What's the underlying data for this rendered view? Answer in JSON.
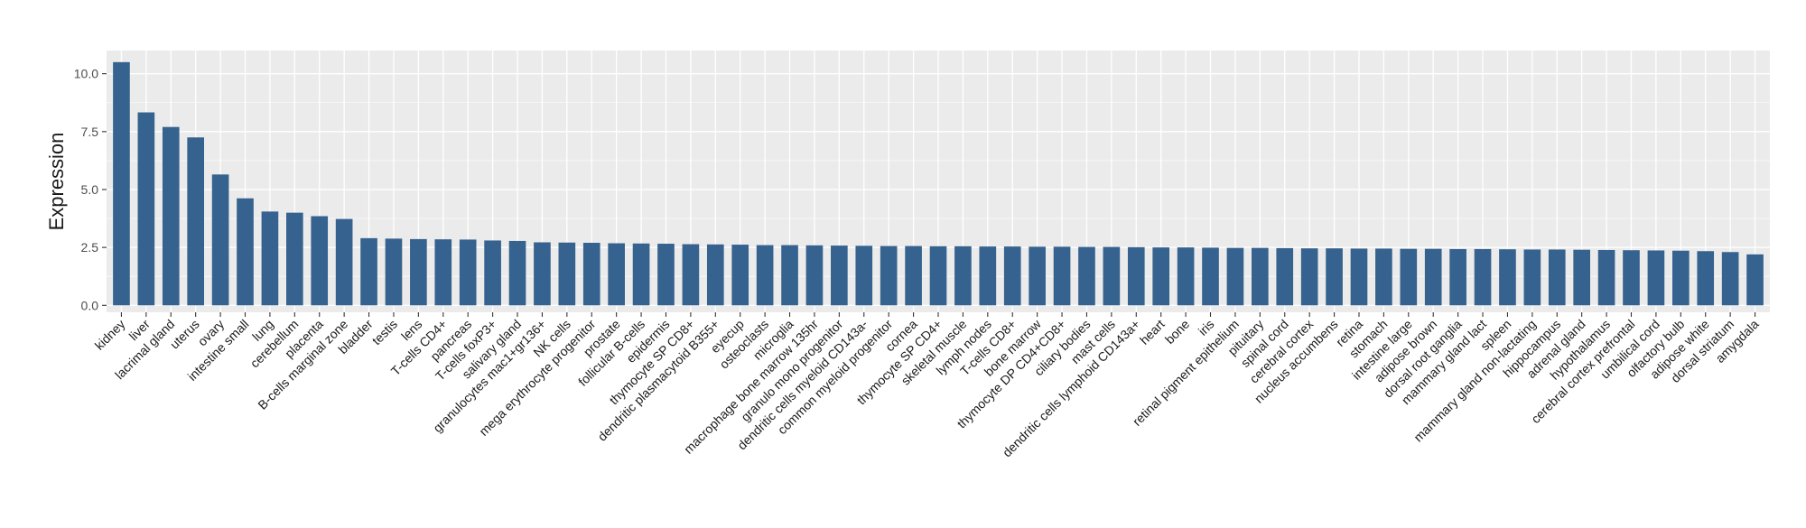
{
  "chart_data": {
    "type": "bar",
    "title": "",
    "xlabel": "",
    "ylabel": "Expression",
    "ylim": [
      -0.3,
      11.0
    ],
    "yticks": [
      0.0,
      2.5,
      5.0,
      7.5,
      10.0
    ],
    "ytick_labels": [
      "0.0",
      "2.5",
      "5.0",
      "7.5",
      "10.0"
    ],
    "grid": true,
    "bar_color": "#35628e",
    "panel_color": "#ebebeb",
    "grid_color": "#ffffff",
    "categories": [
      "kidney",
      "liver",
      "lacrimal gland",
      "uterus",
      "ovary",
      "intestine small",
      "lung",
      "cerebellum",
      "placenta",
      "B-cells marginal zone",
      "bladder",
      "testis",
      "lens",
      "T-cells CD4+",
      "pancreas",
      "T-cells foxP3+",
      "salivary gland",
      "granulocytes mac1+gr136+",
      "NK cells",
      "mega erythrocyte progenitor",
      "prostate",
      "follicular B-cells",
      "epidermis",
      "thymocyte SP CD8+",
      "dendritic plasmacytoid B355+",
      "eyecup",
      "osteoclasts",
      "microglia",
      "macrophage bone marrow 135hr",
      "granulo mono progenitor",
      "dendritic cells myeloid CD143a-",
      "common myeloid progenitor",
      "cornea",
      "thymocyte SP CD4+",
      "skeletal muscle",
      "lymph nodes",
      "T-cells CD8+",
      "bone marrow",
      "thymocyte DP CD4+CD8+",
      "ciliary bodies",
      "mast cells",
      "dendritic cells lymphoid CD143a+",
      "heart",
      "bone",
      "iris",
      "retinal pigment epithelium",
      "pituitary",
      "spinal cord",
      "cerebral cortex",
      "nucleus accumbens",
      "retina",
      "stomach",
      "intestine large",
      "adipose brown",
      "dorsal root ganglia",
      "mammary gland  lact",
      "spleen",
      "mammary gland non-lactating",
      "hippocampus",
      "adrenal gland",
      "hypothalamus",
      "cerebral cortex prefrontal",
      "umbilical cord",
      "olfactory bulb",
      "adipose white",
      "dorsal striatum",
      "amygdala"
    ],
    "values": [
      10.5,
      8.33,
      7.7,
      7.25,
      5.65,
      4.62,
      4.05,
      4.0,
      3.85,
      3.73,
      2.9,
      2.88,
      2.86,
      2.85,
      2.84,
      2.8,
      2.78,
      2.72,
      2.71,
      2.7,
      2.68,
      2.67,
      2.66,
      2.64,
      2.63,
      2.62,
      2.6,
      2.6,
      2.59,
      2.58,
      2.57,
      2.56,
      2.56,
      2.55,
      2.55,
      2.54,
      2.54,
      2.53,
      2.53,
      2.52,
      2.52,
      2.51,
      2.5,
      2.5,
      2.49,
      2.48,
      2.48,
      2.47,
      2.46,
      2.46,
      2.45,
      2.45,
      2.44,
      2.44,
      2.43,
      2.43,
      2.42,
      2.41,
      2.41,
      2.4,
      2.39,
      2.38,
      2.37,
      2.36,
      2.34,
      2.3,
      2.2
    ]
  }
}
